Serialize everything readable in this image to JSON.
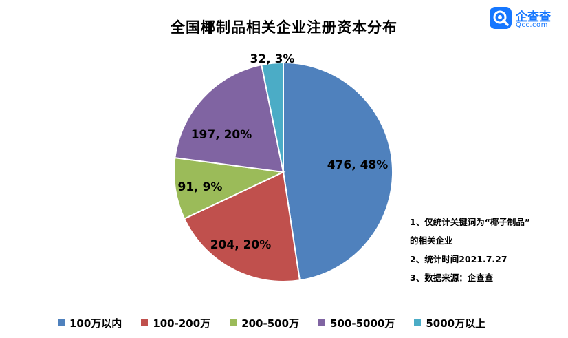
{
  "chart_data": {
    "type": "pie",
    "title": "全国椰制品相关企业注册资本分布",
    "categories": [
      "100万以内",
      "100-200万",
      "200-500万",
      "500-5000万",
      "5000万以上"
    ],
    "values": [
      476,
      204,
      91,
      197,
      32
    ],
    "percent_labels": [
      "48%",
      "20%",
      "9%",
      "20%",
      "3%"
    ],
    "data_labels": [
      "476, 48%",
      "204, 20%",
      "91, 9%",
      "197, 20%",
      "32, 3%"
    ],
    "colors": [
      "#4f81bd",
      "#c0504d",
      "#9bbb59",
      "#8064a2",
      "#4bacc6"
    ],
    "legend_position": "bottom"
  },
  "logo": {
    "name": "企查查",
    "sub": "Qcc.com",
    "icon": "qcc-logo-icon"
  },
  "notes": [
    "1、仅统计关键词为“椰子制品”",
    "的相关企业",
    "2、统计时间2021.7.27",
    "3、数据来源：企查查"
  ]
}
